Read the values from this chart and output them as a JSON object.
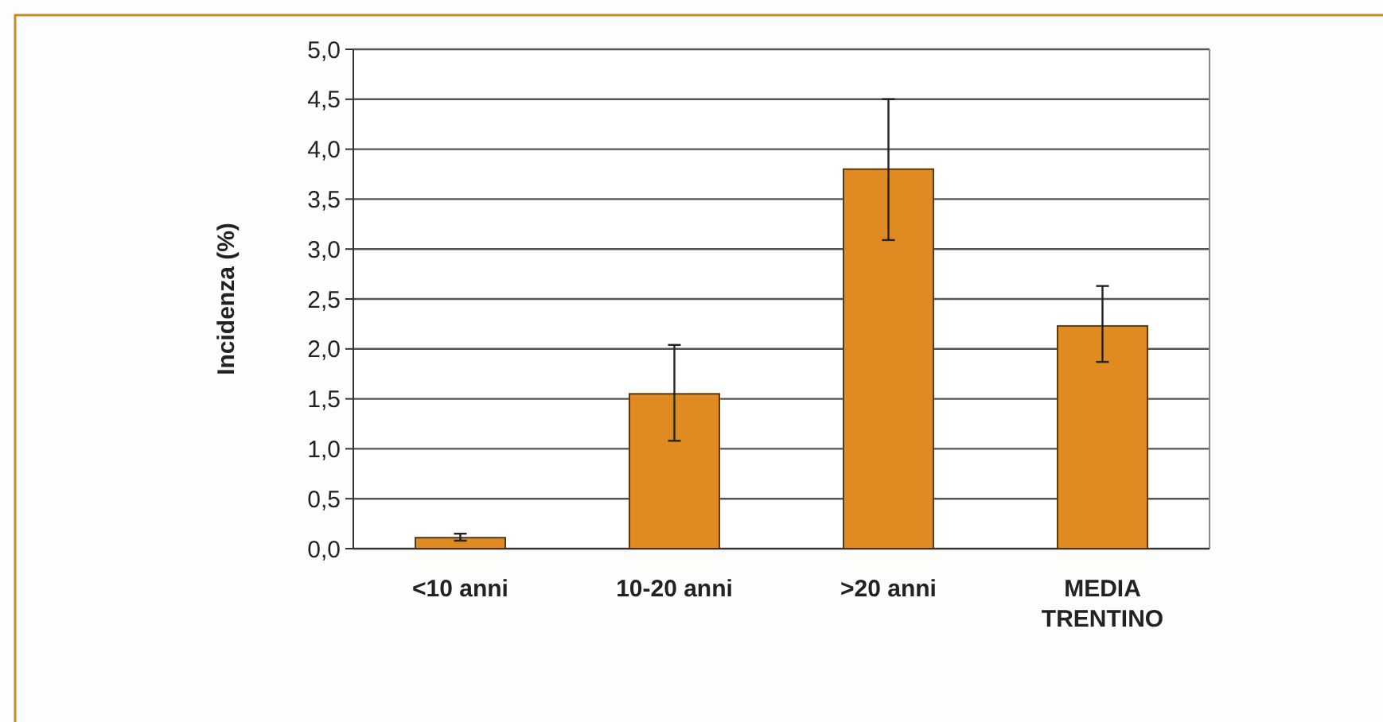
{
  "chart_data": {
    "type": "bar",
    "ylabel": "Incidenza (%)",
    "categories": [
      "<10 anni",
      "10-20 anni",
      ">20 anni",
      "MEDIA TRENTINO"
    ],
    "values": [
      0.11,
      1.55,
      3.8,
      2.23
    ],
    "errors": [
      [
        0.08,
        0.15
      ],
      [
        1.08,
        2.04
      ],
      [
        3.09,
        4.5
      ],
      [
        1.87,
        2.63
      ]
    ],
    "color": "#e08a22",
    "ylim": [
      0,
      5
    ],
    "yticks": [
      {
        "value": 0,
        "label": "0,0"
      },
      {
        "value": 0.5,
        "label": "0,5"
      },
      {
        "value": 1,
        "label": "1,0"
      },
      {
        "value": 1.5,
        "label": "1,5"
      },
      {
        "value": 2,
        "label": "2,0"
      },
      {
        "value": 2.5,
        "label": "2,5"
      },
      {
        "value": 3,
        "label": "3,0"
      },
      {
        "value": 3.5,
        "label": "3,5"
      },
      {
        "value": 4,
        "label": "4,0"
      },
      {
        "value": 4.5,
        "label": "4,5"
      },
      {
        "value": 5,
        "label": "5,0"
      }
    ],
    "grid": "y"
  }
}
